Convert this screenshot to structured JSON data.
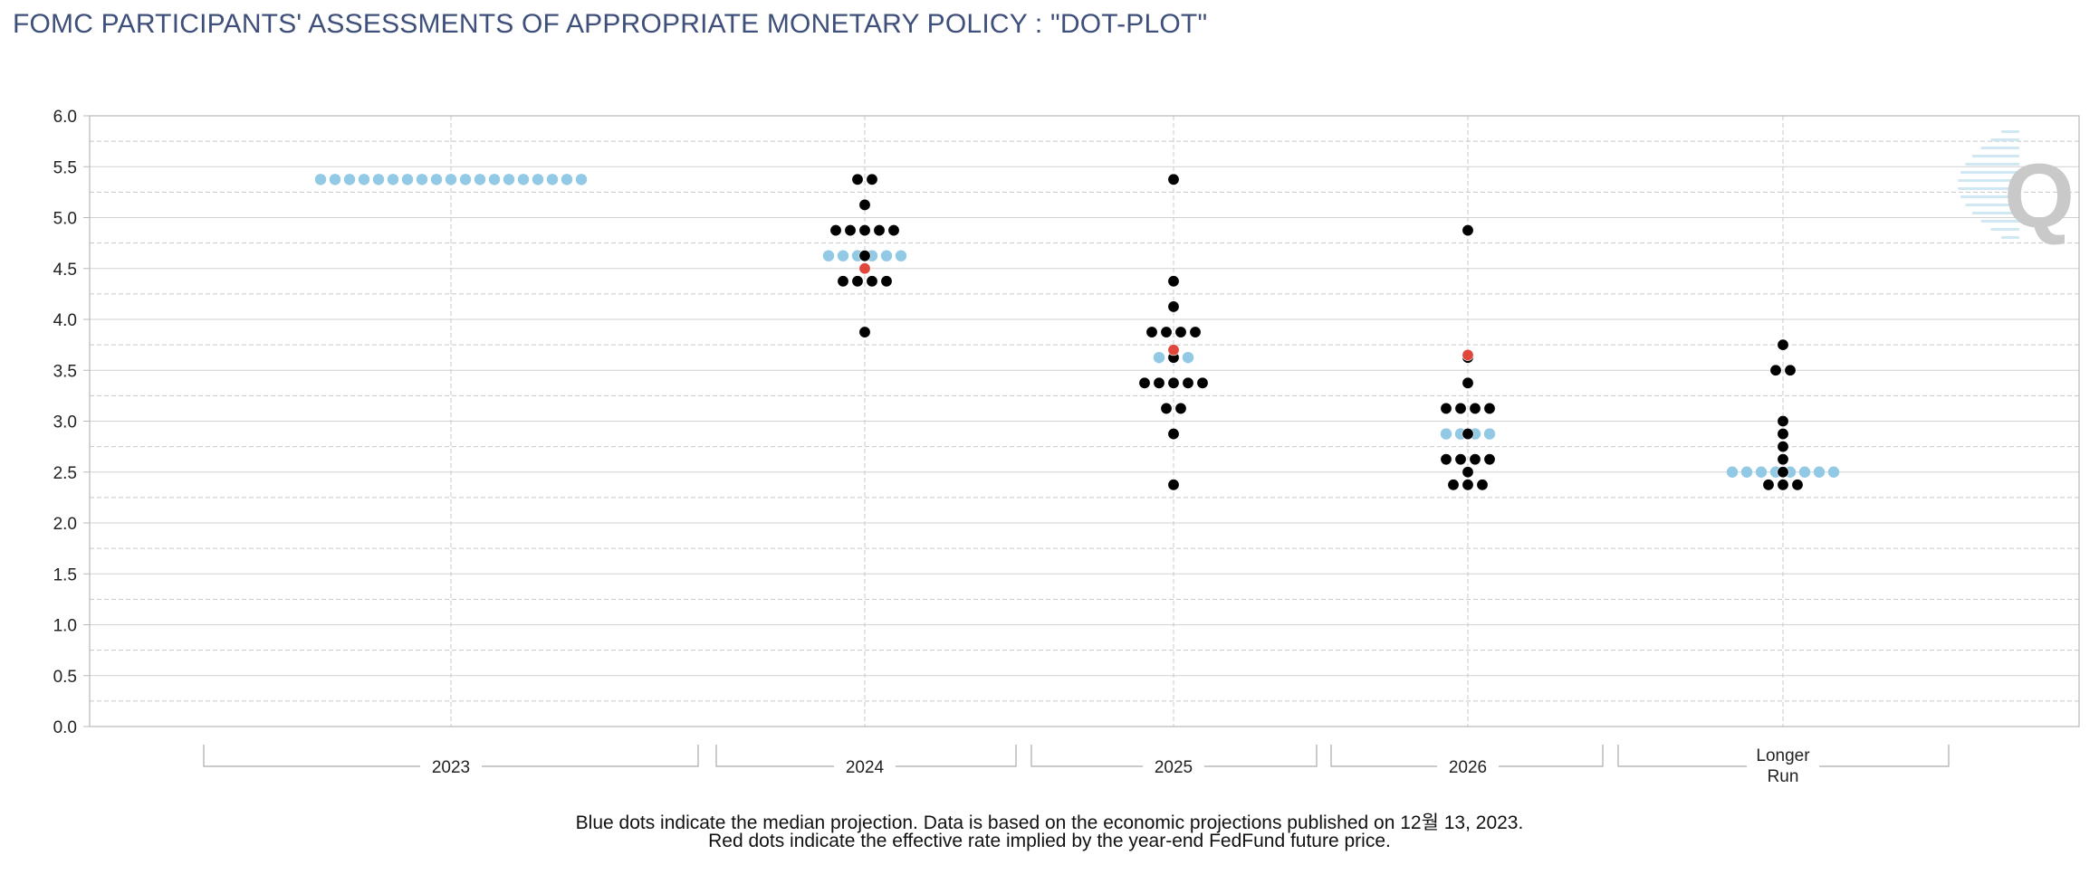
{
  "title": "FOMC PARTICIPANTS' ASSESSMENTS OF APPROPRIATE MONETARY POLICY : \"DOT-PLOT\"",
  "footnotes": [
    "Blue dots indicate the median projection. Data is based on the economic projections published on 12월 13, 2023.",
    "Red dots indicate the effective rate implied by the year-end FedFund future price."
  ],
  "logo_text": "Q",
  "colors": {
    "participant_dot": "#000000",
    "median_dot": "#92c9e4",
    "futures_dot": "#e0463a",
    "grid_major": "#d2d2d2",
    "grid_minor": "#c8c8c8",
    "axis": "#b8b8b8",
    "title": "#3d4f7a"
  },
  "chart_data": {
    "type": "scatter",
    "title": "FOMC PARTICIPANTS' ASSESSMENTS OF APPROPRIATE MONETARY POLICY : \"DOT-PLOT\"",
    "xlabel": "",
    "ylabel": "",
    "ylim": [
      0,
      6
    ],
    "yticks": [
      "0.0",
      "0.5",
      "1.0",
      "1.5",
      "2.0",
      "2.5",
      "3.0",
      "3.5",
      "4.0",
      "4.5",
      "5.0",
      "5.5",
      "6.0"
    ],
    "grid": true,
    "categories": [
      {
        "id": "2023",
        "label": [
          "2023"
        ]
      },
      {
        "id": "2024",
        "label": [
          "2024"
        ]
      },
      {
        "id": "2025",
        "label": [
          "2025"
        ]
      },
      {
        "id": "2026",
        "label": [
          "2026"
        ]
      },
      {
        "id": "longer-run",
        "label": [
          "Longer",
          "Run"
        ]
      }
    ],
    "series": [
      {
        "name": "participants",
        "points": {
          "2023": [],
          "2024": [
            [
              5.375,
              2
            ],
            [
              5.125,
              1
            ],
            [
              4.875,
              5
            ],
            [
              4.625,
              1
            ],
            [
              4.375,
              4
            ],
            [
              3.875,
              1
            ]
          ],
          "2025": [
            [
              5.375,
              1
            ],
            [
              4.375,
              1
            ],
            [
              4.125,
              1
            ],
            [
              3.875,
              4
            ],
            [
              3.625,
              1
            ],
            [
              3.375,
              5
            ],
            [
              3.125,
              2
            ],
            [
              2.875,
              1
            ],
            [
              2.375,
              1
            ]
          ],
          "2026": [
            [
              4.875,
              1
            ],
            [
              3.625,
              1
            ],
            [
              3.375,
              1
            ],
            [
              3.125,
              4
            ],
            [
              2.875,
              1
            ],
            [
              2.625,
              4
            ],
            [
              2.5,
              1
            ],
            [
              2.375,
              3
            ]
          ],
          "longer-run": [
            [
              3.75,
              1
            ],
            [
              3.5,
              2
            ],
            [
              3.0,
              1
            ],
            [
              2.875,
              1
            ],
            [
              2.75,
              1
            ],
            [
              2.625,
              1
            ],
            [
              2.5,
              1
            ],
            [
              2.375,
              3
            ]
          ]
        }
      },
      {
        "name": "median",
        "points": {
          "2023": [
            [
              5.375,
              19
            ]
          ],
          "2024": [
            [
              4.625,
              6
            ]
          ],
          "2025": [
            [
              3.625,
              3
            ]
          ],
          "2026": [
            [
              2.875,
              4
            ]
          ],
          "longer-run": [
            [
              2.5,
              8
            ]
          ]
        }
      },
      {
        "name": "futures-implied",
        "points": {
          "2024": [
            [
              4.5,
              1
            ]
          ],
          "2025": [
            [
              3.7,
              1
            ]
          ],
          "2026": [
            [
              3.65,
              1
            ]
          ]
        }
      }
    ]
  }
}
